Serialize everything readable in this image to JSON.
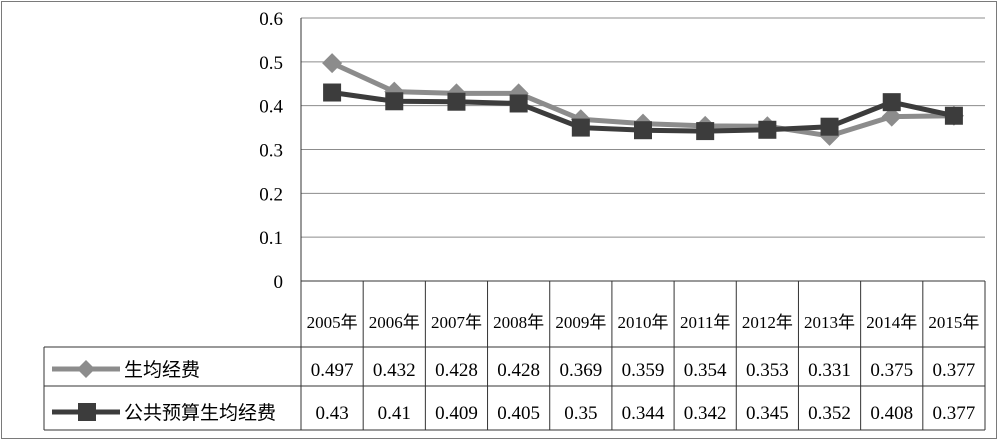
{
  "chart_data": {
    "type": "line",
    "categories": [
      "2005年",
      "2006年",
      "2007年",
      "2008年",
      "2009年",
      "2010年",
      "2011年",
      "2012年",
      "2013年",
      "2014年",
      "2015年"
    ],
    "series": [
      {
        "name": "生均经费",
        "values": [
          0.497,
          0.432,
          0.428,
          0.428,
          0.369,
          0.359,
          0.354,
          0.353,
          0.331,
          0.375,
          0.377
        ],
        "labels": [
          "0.497",
          "0.432",
          "0.428",
          "0.428",
          "0.369",
          "0.359",
          "0.354",
          "0.353",
          "0.331",
          "0.375",
          "0.377"
        ],
        "color": "#8c8c8c",
        "marker": "diamond"
      },
      {
        "name": "公共预算生均经费",
        "values": [
          0.43,
          0.41,
          0.409,
          0.405,
          0.35,
          0.344,
          0.342,
          0.345,
          0.352,
          0.408,
          0.377
        ],
        "labels": [
          "0.43",
          "0.41",
          "0.409",
          "0.405",
          "0.35",
          "0.344",
          "0.342",
          "0.345",
          "0.352",
          "0.408",
          "0.377"
        ],
        "color": "#3c3c3c",
        "marker": "square"
      }
    ],
    "y_ticks": [
      "0",
      "0.1",
      "0.2",
      "0.3",
      "0.4",
      "0.5",
      "0.6"
    ],
    "ylim": [
      0,
      0.6
    ],
    "grid": true,
    "legend": "data-table-left",
    "data_table": true
  }
}
